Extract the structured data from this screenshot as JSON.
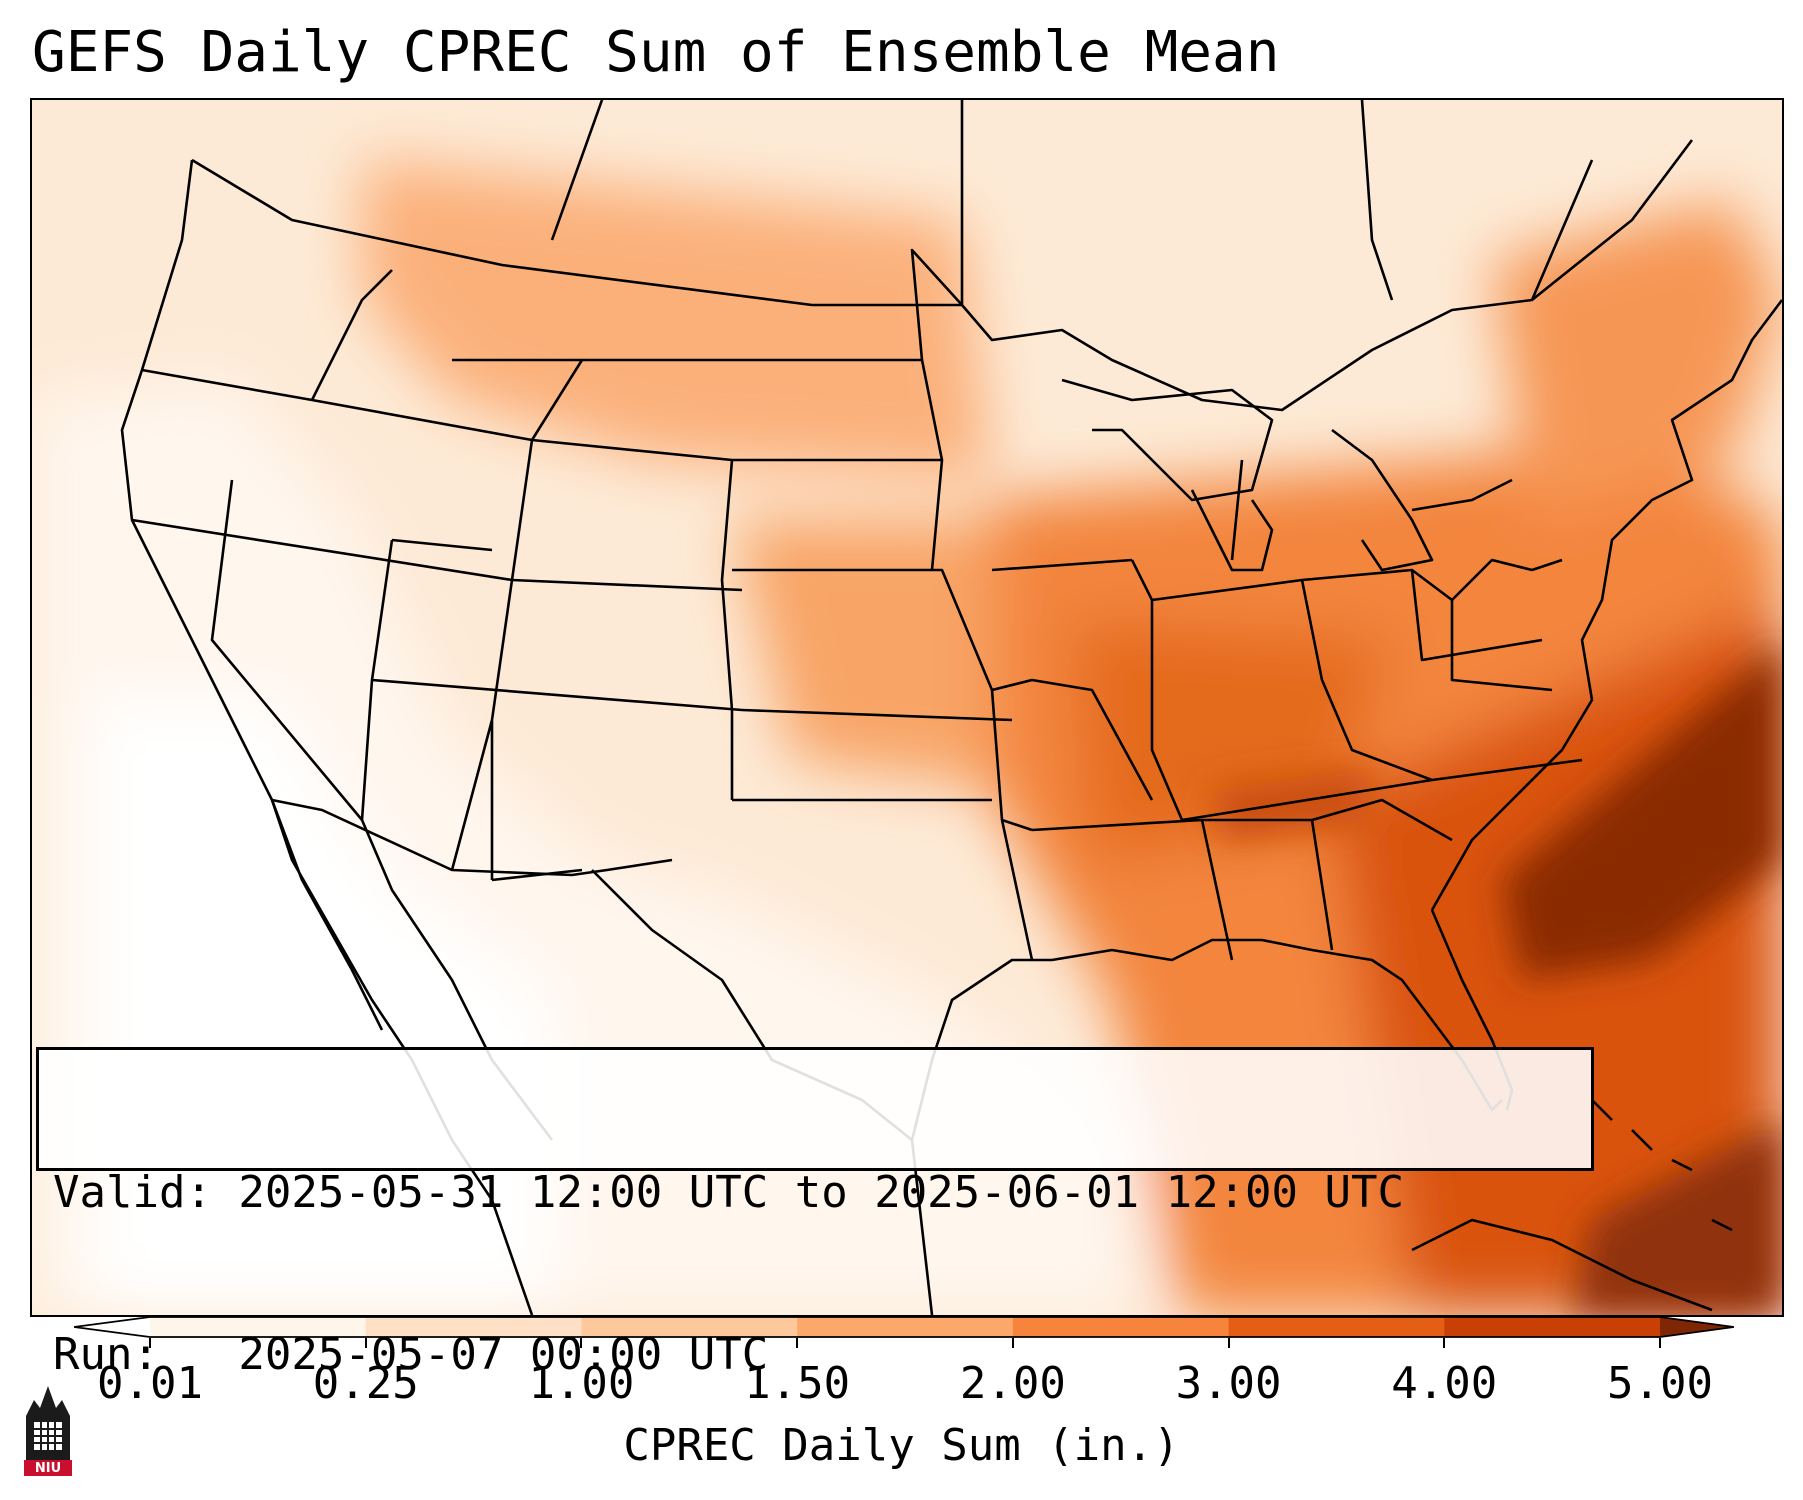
{
  "title": "GEFS Daily CPREC Sum of Ensemble Mean",
  "info": {
    "valid_line": "Valid: 2025-05-31 12:00 UTC to 2025-06-01 12:00 UTC",
    "run_line": "Run:   2025-05-07 00:00 UTC"
  },
  "colorbar": {
    "label": "CPREC Daily Sum (in.)",
    "ticks": [
      "0.01",
      "0.25",
      "1.00",
      "1.50",
      "2.00",
      "3.00",
      "4.00",
      "5.00"
    ],
    "colors": [
      "#fef5eb",
      "#fde0c5",
      "#fdc89b",
      "#fba86a",
      "#f6843c",
      "#e45e15",
      "#c84006",
      "#7f2704"
    ],
    "under_color": "#ffffff",
    "over_color": "#7f2704"
  },
  "map": {
    "projection": "Lambert conformal (CONUS)",
    "field": "CPREC daily sum, ensemble mean"
  },
  "logo": {
    "text": "NIU"
  }
}
